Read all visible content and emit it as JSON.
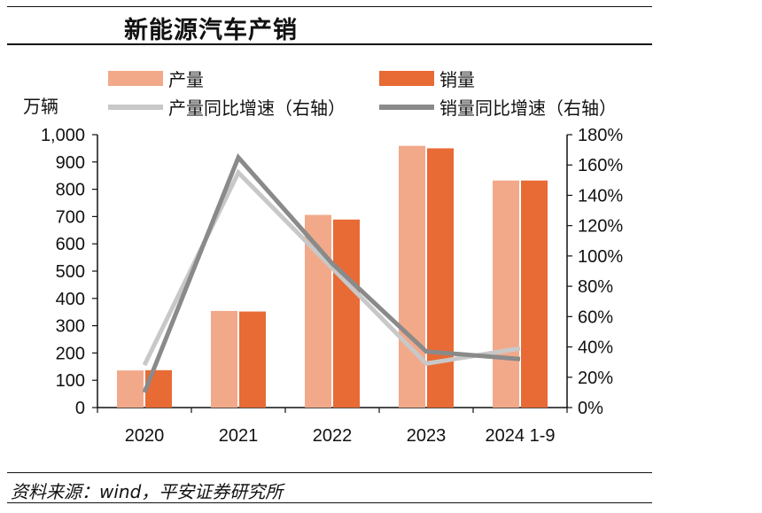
{
  "title": "新能源汽车产销",
  "source": "资料来源：wind，平安证券研究所",
  "chart_data": {
    "type": "bar",
    "unit_left": "万辆",
    "categories": [
      "2020",
      "2021",
      "2022",
      "2023",
      "2024 1-9"
    ],
    "series": [
      {
        "name": "产量",
        "kind": "bar",
        "axis": "left",
        "color": "#f2a98a",
        "values": [
          136,
          354,
          706,
          959,
          832
        ]
      },
      {
        "name": "销量",
        "kind": "bar",
        "axis": "left",
        "color": "#e86a35",
        "values": [
          137,
          352,
          689,
          950,
          832
        ]
      },
      {
        "name": "产量同比增速（右轴）",
        "kind": "line",
        "axis": "right",
        "color": "#c8c8c8",
        "values": [
          28,
          155,
          92,
          29,
          39
        ]
      },
      {
        "name": "销量同比增速（右轴）",
        "kind": "line",
        "axis": "right",
        "color": "#8a8a8a",
        "values": [
          10,
          165,
          95,
          37,
          32
        ]
      }
    ],
    "ylim_left": [
      0,
      1000
    ],
    "yticks_left": [
      "0",
      "100",
      "200",
      "300",
      "400",
      "500",
      "600",
      "700",
      "800",
      "900",
      "1,000"
    ],
    "ylim_right": [
      0,
      180
    ],
    "yticks_right": [
      "0%",
      "20%",
      "40%",
      "60%",
      "80%",
      "100%",
      "120%",
      "140%",
      "160%",
      "180%"
    ],
    "grid": false,
    "legend_position": "top"
  }
}
